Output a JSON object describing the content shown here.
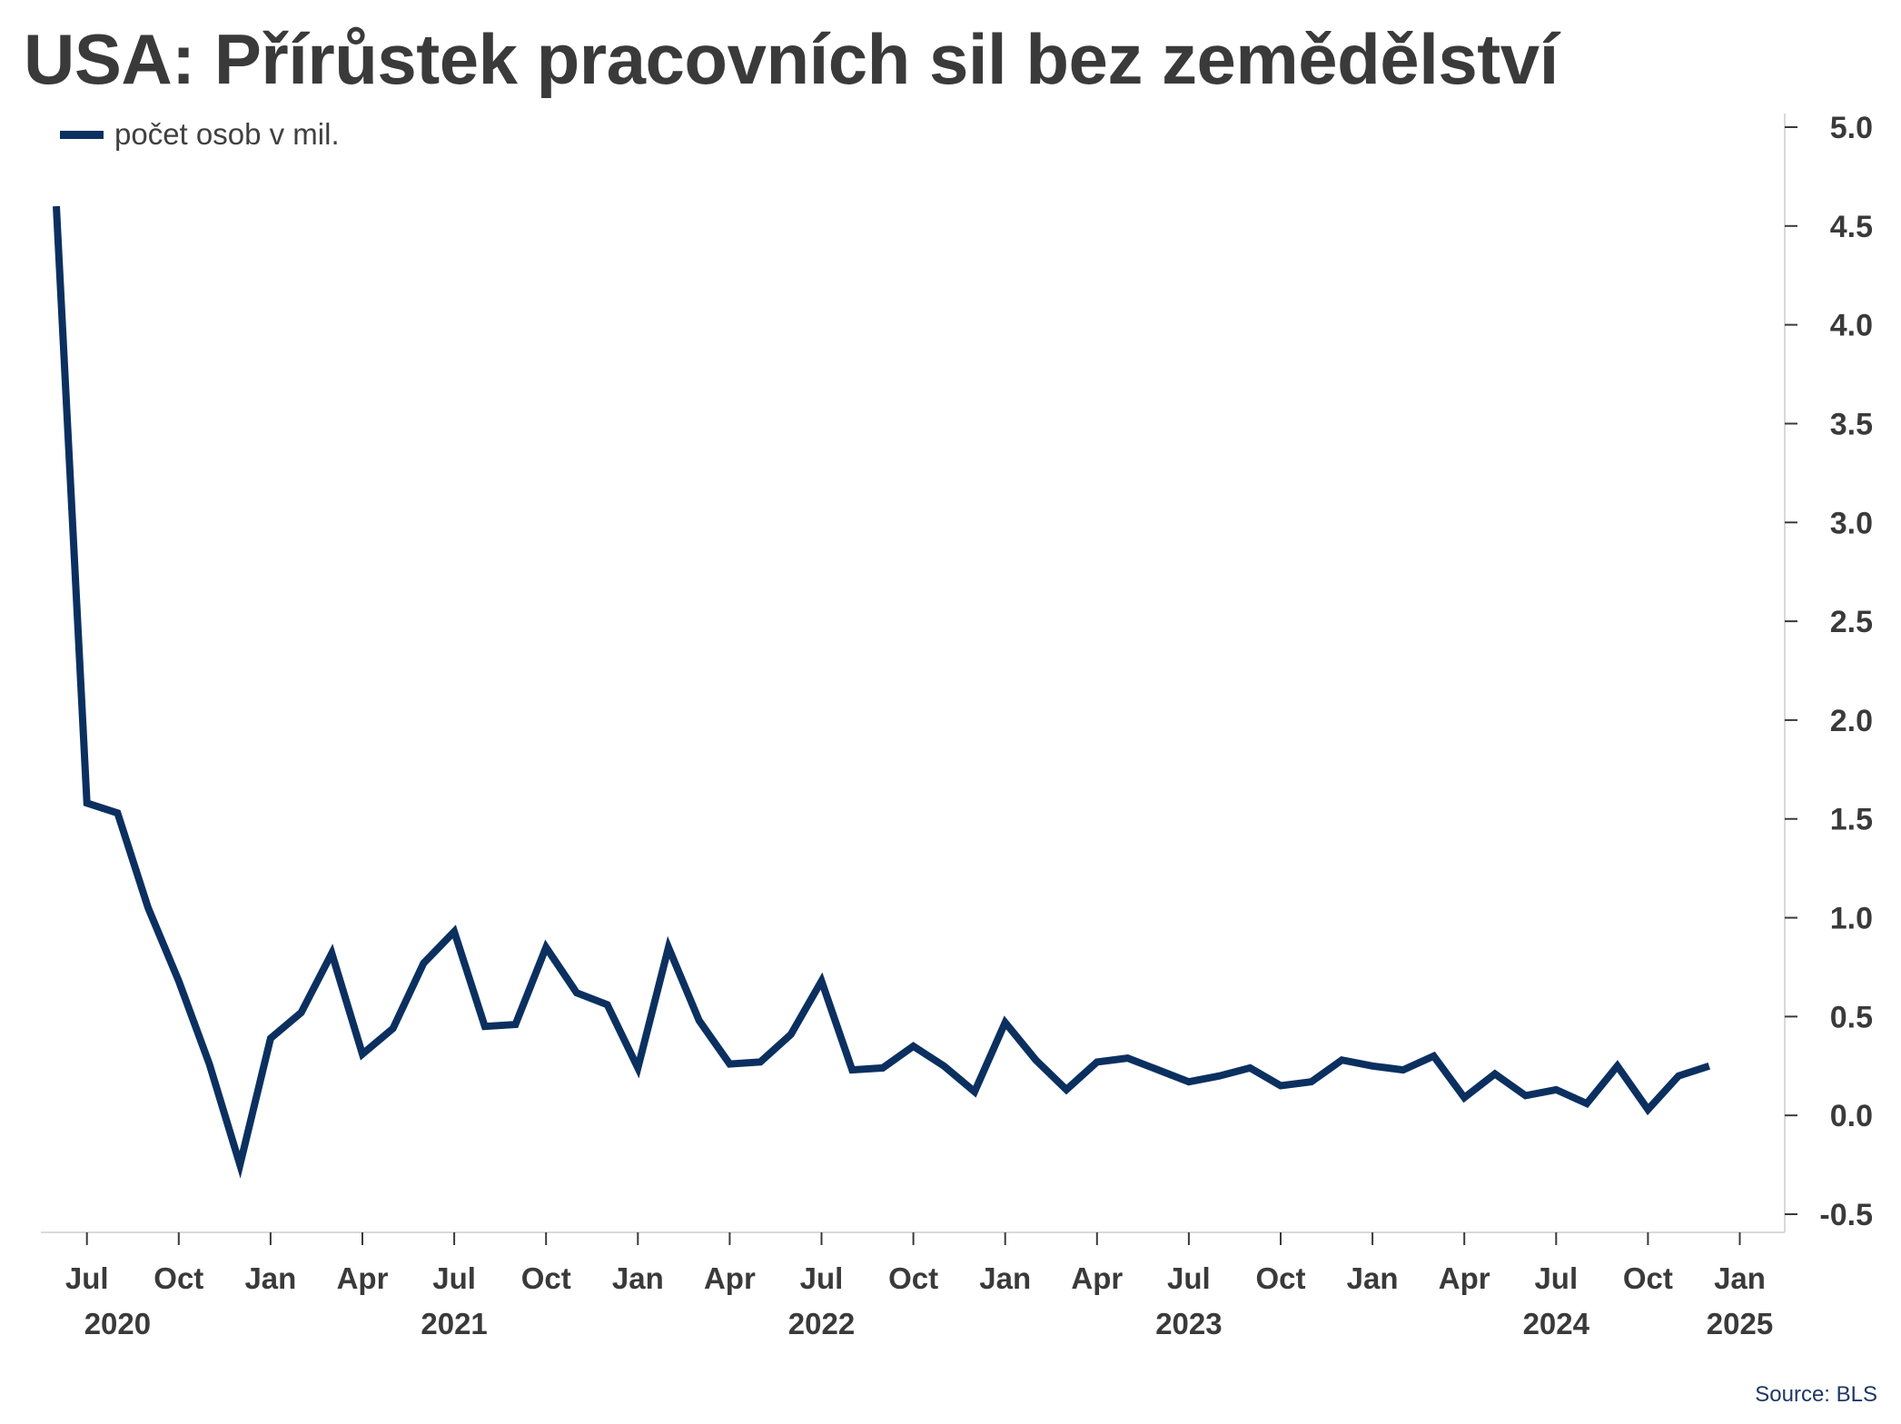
{
  "title": "USA: Přírůstek pracovních sil bez zemědělství",
  "legend": {
    "label": "počet osob v mil."
  },
  "source": "Source: BLS",
  "colors": {
    "line": "#0b3060",
    "axis": "#d9d9d9",
    "text": "#3a3a3a"
  },
  "chart_data": {
    "type": "line",
    "title": "USA: Přírůstek pracovních sil bez zemědělství",
    "ylim": [
      -0.5,
      5.0
    ],
    "y_ticks": [
      "5.0",
      "4.5",
      "4.0",
      "3.5",
      "3.0",
      "2.5",
      "2.0",
      "1.5",
      "1.0",
      "0.5",
      "0.0",
      "-0.5"
    ],
    "y_axis_side": "right",
    "grid": false,
    "legend_position": "top-left",
    "x_ticks": [
      {
        "label": "Jul",
        "date": "2020-07"
      },
      {
        "label": "Oct",
        "date": "2020-10"
      },
      {
        "label": "Jan",
        "date": "2021-01"
      },
      {
        "label": "Apr",
        "date": "2021-04"
      },
      {
        "label": "Jul",
        "date": "2021-07"
      },
      {
        "label": "Oct",
        "date": "2021-10"
      },
      {
        "label": "Jan",
        "date": "2022-01"
      },
      {
        "label": "Apr",
        "date": "2022-04"
      },
      {
        "label": "Jul",
        "date": "2022-07"
      },
      {
        "label": "Oct",
        "date": "2022-10"
      },
      {
        "label": "Jan",
        "date": "2023-01"
      },
      {
        "label": "Apr",
        "date": "2023-04"
      },
      {
        "label": "Jul",
        "date": "2023-07"
      },
      {
        "label": "Oct",
        "date": "2023-10"
      },
      {
        "label": "Jan",
        "date": "2024-01"
      },
      {
        "label": "Apr",
        "date": "2024-04"
      },
      {
        "label": "Jul",
        "date": "2024-07"
      },
      {
        "label": "Oct",
        "date": "2024-10"
      },
      {
        "label": "Jan",
        "date": "2025-01"
      }
    ],
    "year_labels": [
      {
        "label": "2020",
        "date": "2020-08"
      },
      {
        "label": "2021",
        "date": "2021-07"
      },
      {
        "label": "2022",
        "date": "2022-07"
      },
      {
        "label": "2023",
        "date": "2023-07"
      },
      {
        "label": "2024",
        "date": "2024-07"
      },
      {
        "label": "2025",
        "date": "2025-01"
      }
    ],
    "series": [
      {
        "name": "počet osob v mil.",
        "x": [
          "2020-06",
          "2020-07",
          "2020-08",
          "2020-09",
          "2020-10",
          "2020-11",
          "2020-12",
          "2021-01",
          "2021-02",
          "2021-03",
          "2021-04",
          "2021-05",
          "2021-06",
          "2021-07",
          "2021-08",
          "2021-09",
          "2021-10",
          "2021-11",
          "2021-12",
          "2022-01",
          "2022-02",
          "2022-03",
          "2022-04",
          "2022-05",
          "2022-06",
          "2022-07",
          "2022-08",
          "2022-09",
          "2022-10",
          "2022-11",
          "2022-12",
          "2023-01",
          "2023-02",
          "2023-03",
          "2023-04",
          "2023-05",
          "2023-06",
          "2023-07",
          "2023-08",
          "2023-09",
          "2023-10",
          "2023-11",
          "2023-12",
          "2024-01",
          "2024-02",
          "2024-03",
          "2024-04",
          "2024-05",
          "2024-06",
          "2024-07",
          "2024-08",
          "2024-09",
          "2024-10",
          "2024-11",
          "2024-12"
        ],
        "y": [
          4.6,
          1.58,
          1.53,
          1.05,
          0.68,
          0.26,
          -0.25,
          0.39,
          0.52,
          0.82,
          0.31,
          0.44,
          0.77,
          0.93,
          0.45,
          0.46,
          0.85,
          0.62,
          0.56,
          0.24,
          0.85,
          0.48,
          0.26,
          0.27,
          0.41,
          0.68,
          0.23,
          0.24,
          0.35,
          0.25,
          0.12,
          0.47,
          0.28,
          0.13,
          0.27,
          0.29,
          0.23,
          0.17,
          0.2,
          0.24,
          0.15,
          0.17,
          0.28,
          0.25,
          0.23,
          0.3,
          0.09,
          0.21,
          0.1,
          0.13,
          0.06,
          0.25,
          0.03,
          0.2,
          0.25
        ]
      }
    ]
  }
}
